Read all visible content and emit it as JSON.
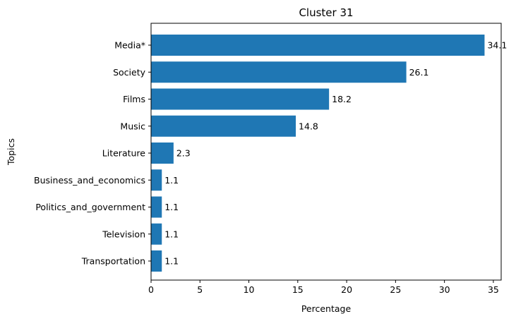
{
  "chart_data": {
    "type": "bar",
    "orientation": "horizontal",
    "title": "Cluster 31",
    "xlabel": "Percentage",
    "ylabel": "Topics",
    "categories": [
      "Media*",
      "Society",
      "Films",
      "Music",
      "Literature",
      "Business_and_economics",
      "Politics_and_government",
      "Television",
      "Transportation"
    ],
    "values": [
      34.1,
      26.1,
      18.2,
      14.8,
      2.3,
      1.1,
      1.1,
      1.1,
      1.1
    ],
    "value_labels": [
      "34.1",
      "26.1",
      "18.2",
      "14.8",
      "2.3",
      "1.1",
      "1.1",
      "1.1",
      "1.1"
    ],
    "xlim": [
      0,
      35.8
    ],
    "xticks": [
      0,
      5,
      10,
      15,
      20,
      25,
      30,
      35
    ],
    "grid": false,
    "legend": "none",
    "bar_color": "#1f77b4"
  }
}
